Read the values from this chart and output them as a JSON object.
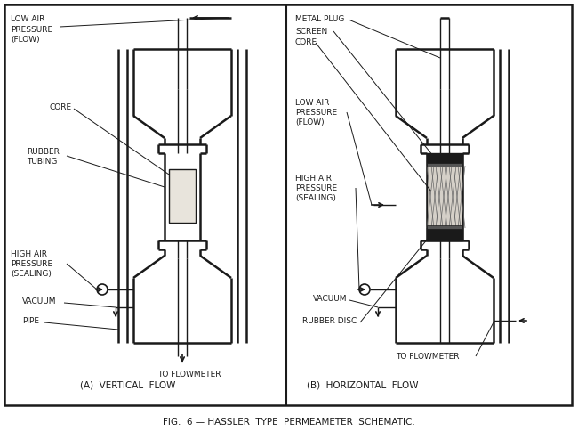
{
  "fig_width": 6.5,
  "fig_height": 4.94,
  "dpi": 100,
  "bg_color": "#ffffff",
  "line_color": "#1a1a1a",
  "title": "FIG.  6 — HASSLER  TYPE  PERMEAMETER  SCHEMATIC.",
  "label_A": "(A)  VERTICAL  FLOW",
  "label_B": "(B)  HORIZONTAL  FLOW"
}
